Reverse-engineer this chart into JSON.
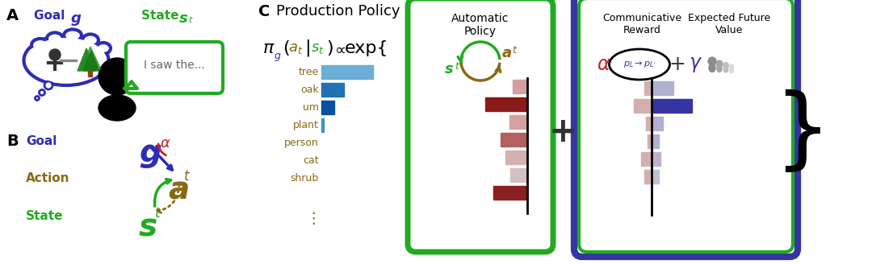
{
  "fig_width": 10.8,
  "fig_height": 3.28,
  "bg_color": "#ffffff",
  "panel_A": {
    "label": "A",
    "goal_text": "Goal ",
    "goal_italic": "g",
    "state_text": "State ",
    "state_italic": "s",
    "state_sub": "t",
    "speech_text": "I saw the...",
    "thought_color": "#2d2db5",
    "speech_color": "#22aa22",
    "person_color": "#111111"
  },
  "panel_B": {
    "label": "B",
    "goal_label": "Goal",
    "action_label": "Action",
    "state_label": "State",
    "goal_color": "#2d2db5",
    "action_color": "#8B6914",
    "state_color": "#22aa22",
    "alpha_color": "#cc2222"
  },
  "panel_C": {
    "label": "C",
    "title": "Production Policy",
    "categories": [
      "tree",
      "oak",
      "um",
      "plant",
      "person",
      "cat",
      "shrub"
    ],
    "cat_color": "#8B6914",
    "action_color": "#8B6914",
    "left_bars": [
      3.2,
      1.4,
      0.8,
      0.15,
      0.0,
      0.0,
      0.0
    ],
    "left_bar_colors": [
      "#6baed6",
      "#2171b5",
      "#08519c",
      "#4292c6",
      "#f0f0f0",
      "#f0f0f0",
      "#f0f0f0"
    ],
    "auto_bars": [
      1.2,
      3.5,
      1.5,
      2.2,
      1.8,
      1.4,
      2.8
    ],
    "auto_bar_colors": [
      "#d4a0a0",
      "#8b1a1a",
      "#d4a0a0",
      "#b56060",
      "#d4b0b0",
      "#d4c0c0",
      "#8b2020"
    ],
    "comm_bars_right": [
      1.5,
      2.8,
      0.8,
      0.5,
      0.6,
      0.5,
      0.0
    ],
    "comm_bars_left": [
      0.5,
      1.2,
      0.4,
      0.3,
      0.7,
      0.5,
      0.0
    ],
    "comm_right_colors": [
      "#b0b0d0",
      "#3535a0",
      "#b0b0d0",
      "#b0b0d0",
      "#c0b0d0",
      "#c0c0d0",
      "#d0d0e0"
    ],
    "comm_left_colors": [
      "#d0b0b0",
      "#d0b0b0",
      "#d0b0b0",
      "#d0b0b0",
      "#d0b0b0",
      "#d0b0b0",
      "#d0d0d0"
    ],
    "green_box_color": "#22aa22",
    "blue_box_color": "#3535a0",
    "auto_title": "Automatic\nPolicy",
    "comm_title1": "Communicative\nReward",
    "comm_title2": "Expected Future\nValue",
    "alpha_color": "#cc2222",
    "gamma_color": "#3535a0",
    "plus_color": "#333333",
    "goal_color": "#2d2db5",
    "state_color": "#22aa22"
  }
}
